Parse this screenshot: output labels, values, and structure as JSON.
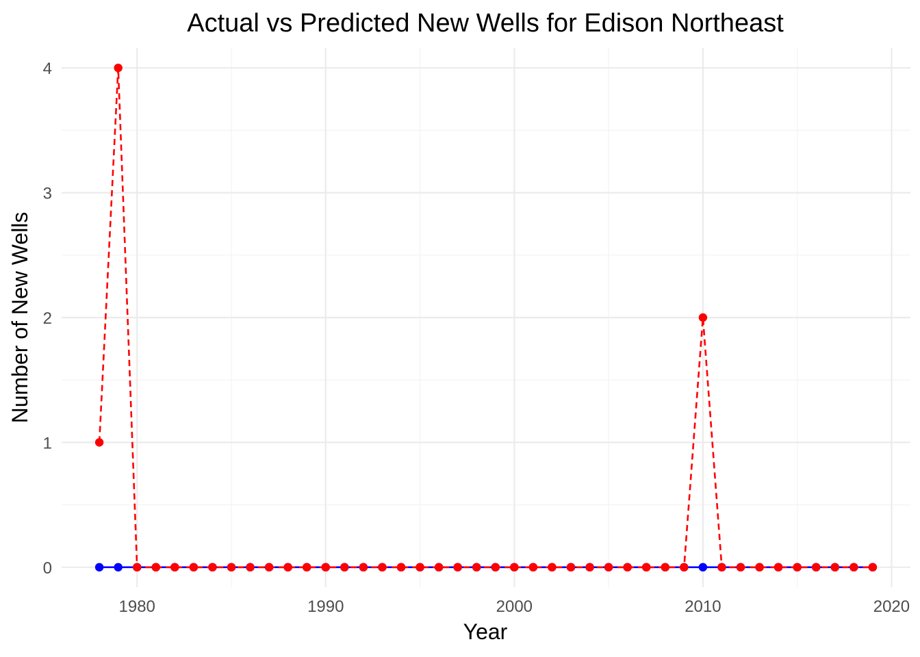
{
  "chart_data": {
    "type": "line",
    "title": "Actual vs Predicted New Wells for Edison  Northeast",
    "xlabel": "Year",
    "ylabel": "Number of New Wells",
    "xlim": [
      1976,
      2021
    ],
    "ylim": [
      -0.16,
      4.16
    ],
    "x_ticks": [
      1980,
      1990,
      2000,
      2010,
      2020
    ],
    "y_ticks": [
      0,
      1,
      2,
      3,
      4
    ],
    "x_tick_labels": [
      "1980",
      "1990",
      "2000",
      "2010",
      "2020"
    ],
    "y_tick_labels": [
      "0",
      "1",
      "2",
      "3",
      "4"
    ],
    "grid": true,
    "legend": "none",
    "x": [
      1978,
      1979,
      1980,
      1981,
      1982,
      1983,
      1984,
      1985,
      1986,
      1987,
      1988,
      1989,
      1990,
      1991,
      1992,
      1993,
      1994,
      1995,
      1996,
      1997,
      1998,
      1999,
      2000,
      2001,
      2002,
      2003,
      2004,
      2005,
      2006,
      2007,
      2008,
      2009,
      2010,
      2011,
      2012,
      2013,
      2014,
      2015,
      2016,
      2017,
      2018,
      2019
    ],
    "series": [
      {
        "color": "#0000ff",
        "line_style": "solid",
        "values": [
          0,
          0,
          0,
          0,
          0,
          0,
          0,
          0,
          0,
          0,
          0,
          0,
          0,
          0,
          0,
          0,
          0,
          0,
          0,
          0,
          0,
          0,
          0,
          0,
          0,
          0,
          0,
          0,
          0,
          0,
          0,
          0,
          0,
          0,
          0,
          0,
          0,
          0,
          0,
          0,
          0,
          0
        ]
      },
      {
        "color": "#ff0000",
        "line_style": "dashed",
        "values": [
          1,
          4,
          0,
          0,
          0,
          0,
          0,
          0,
          0,
          0,
          0,
          0,
          0,
          0,
          0,
          0,
          0,
          0,
          0,
          0,
          0,
          0,
          0,
          0,
          0,
          0,
          0,
          0,
          0,
          0,
          0,
          0,
          2,
          0,
          0,
          0,
          0,
          0,
          0,
          0,
          0,
          0
        ]
      }
    ]
  }
}
